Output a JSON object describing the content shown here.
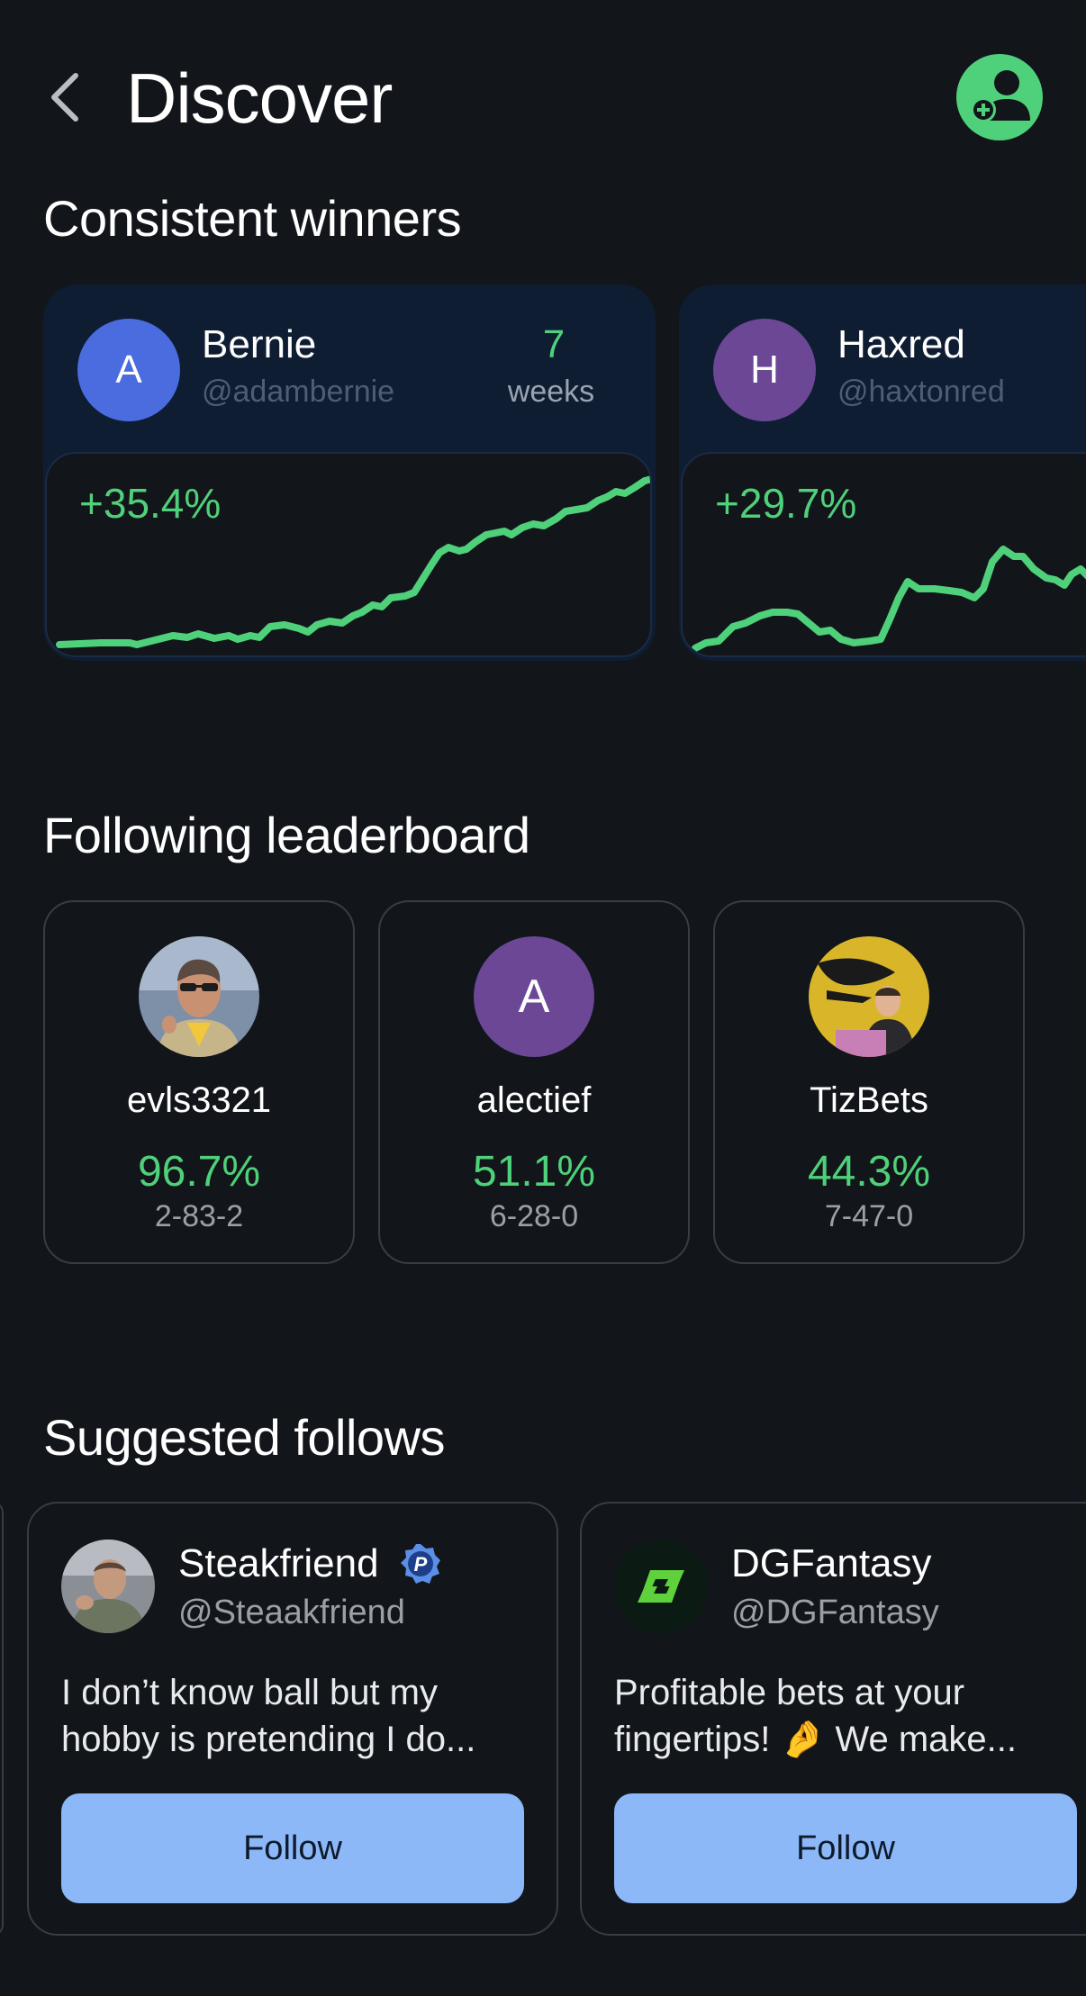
{
  "header": {
    "title": "Discover",
    "back_icon": "chevron-left-icon",
    "add_friend_icon": "person-add-icon"
  },
  "consistent_winners": {
    "title": "Consistent winners",
    "cards": [
      {
        "initial": "A",
        "name": "Bernie",
        "handle": "@adambernie",
        "weeks": "7",
        "weeks_label": "weeks",
        "gain": "+35.4%",
        "avatar_color": "#4a6cde"
      },
      {
        "initial": "H",
        "name": "Haxred",
        "handle": "@haxtonred",
        "gain": "+29.7%",
        "avatar_color": "#6b4796"
      }
    ]
  },
  "following_leaderboard": {
    "title": "Following leaderboard",
    "items": [
      {
        "name": "evls3321",
        "pct": "96.7%",
        "record": "2-83-2",
        "avatar": "photo"
      },
      {
        "name": "alectief",
        "pct": "51.1%",
        "record": "6-28-0",
        "initial": "A",
        "avatar_color": "#6b4796"
      },
      {
        "name": "TizBets",
        "pct": "44.3%",
        "record": "7-47-0",
        "avatar": "photo"
      }
    ]
  },
  "suggested_follows": {
    "title": "Suggested follows",
    "items": [
      {
        "name": "Steakfriend",
        "badge_icon": "verified-p-badge-icon",
        "handle": "@Steaakfriend",
        "bio": "I don’t know ball but my hobby is pretending I do...",
        "follow_label": "Follow"
      },
      {
        "name": "DGFantasy",
        "handle": "@DGFantasy",
        "bio": "Profitable bets at your fingertips! 🤌 We make...",
        "follow_label": "Follow"
      }
    ]
  },
  "colors": {
    "background": "#121519",
    "accent_green": "#4fd07a",
    "follow_button": "#8cb8f8",
    "card_navy": "#0f1d33"
  }
}
